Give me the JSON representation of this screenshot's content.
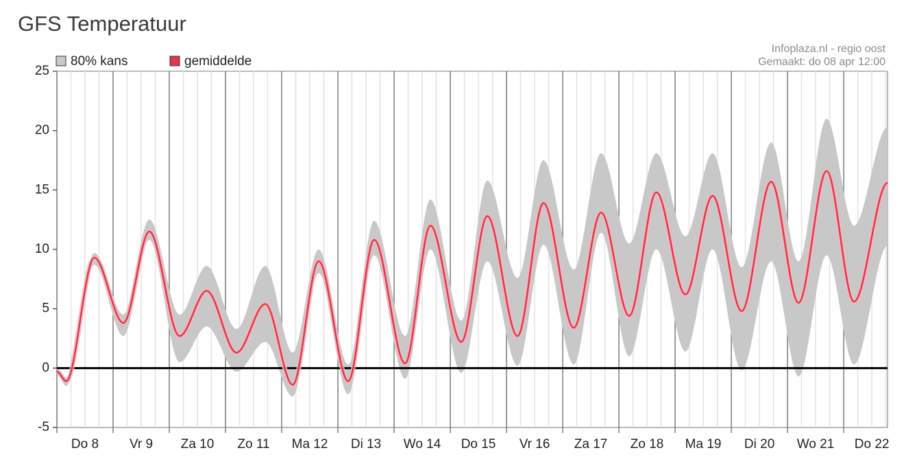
{
  "chart_data": {
    "type": "band_line",
    "title": "GFS Temperatuur",
    "source": "Infoplaza.nl - regio oost",
    "made": "Gemaakt: do 08 apr 12:00",
    "x": [
      0,
      4,
      16,
      28.4,
      39.5,
      52.4,
      64,
      76.7,
      89,
      100.7,
      111.8,
      124.4,
      135.5,
      148.7,
      159.5,
      172.7,
      183.8,
      196.7,
      207.8,
      220.7,
      232.4,
      244.4,
      256,
      268.4,
      280,
      292.4,
      305,
      316.7,
      328.7,
      340.4,
      354.7
    ],
    "series": [
      {
        "name": "80% kans",
        "color": "#c8c8c8",
        "low": [
          -0.5,
          -1.5,
          8.7,
          2.7,
          10.8,
          0.5,
          3.5,
          -0.3,
          2.2,
          -2.4,
          8.0,
          -2.2,
          9.5,
          -0.9,
          10.0,
          -0.4,
          9.0,
          0.2,
          10.4,
          0.3,
          11.4,
          1.0,
          10.0,
          1.4,
          10.0,
          -0.2,
          9.0,
          -0.7,
          9.5,
          0.3,
          10.3
        ],
        "values": [
          -0.1,
          -0.8,
          9.7,
          4.5,
          12.5,
          4.5,
          8.6,
          3.3,
          8.6,
          1.3,
          10.0,
          0.3,
          12.4,
          2.7,
          14.2,
          4.0,
          15.8,
          7.6,
          17.5,
          8.3,
          18.1,
          10.5,
          18.1,
          11.1,
          18.1,
          8.5,
          19.0,
          9.0,
          21.0,
          12.0,
          20.3
        ]
      },
      {
        "name": "gemiddelde",
        "color": "#e0384a",
        "values": [
          -0.3,
          -1.1,
          9.3,
          3.8,
          11.5,
          2.7,
          6.5,
          1.3,
          5.4,
          -1.4,
          9.0,
          -1.1,
          10.8,
          0.4,
          12.0,
          2.2,
          12.8,
          2.7,
          13.9,
          3.4,
          13.1,
          4.4,
          14.8,
          6.2,
          14.5,
          4.8,
          15.7,
          5.5,
          16.6,
          5.6,
          15.6
        ]
      }
    ],
    "xlim": [
      0,
      354.7
    ],
    "xticks": [
      0,
      24,
      48,
      72,
      96,
      120,
      144,
      168,
      192,
      216,
      240,
      264,
      288,
      312,
      336
    ],
    "day_labels": [
      "Do 8",
      "Vr 9",
      "Za 10",
      "Zo 11",
      "Ma 12",
      "Di 13",
      "Wo 14",
      "Do 15",
      "Vr 16",
      "Za 17",
      "Zo 18",
      "Ma 19",
      "Di 20",
      "Wo 21",
      "Do 22"
    ],
    "ylim": [
      -5,
      25
    ],
    "yticks": [
      -5,
      0,
      5,
      10,
      15,
      20,
      25
    ],
    "grid": true
  }
}
